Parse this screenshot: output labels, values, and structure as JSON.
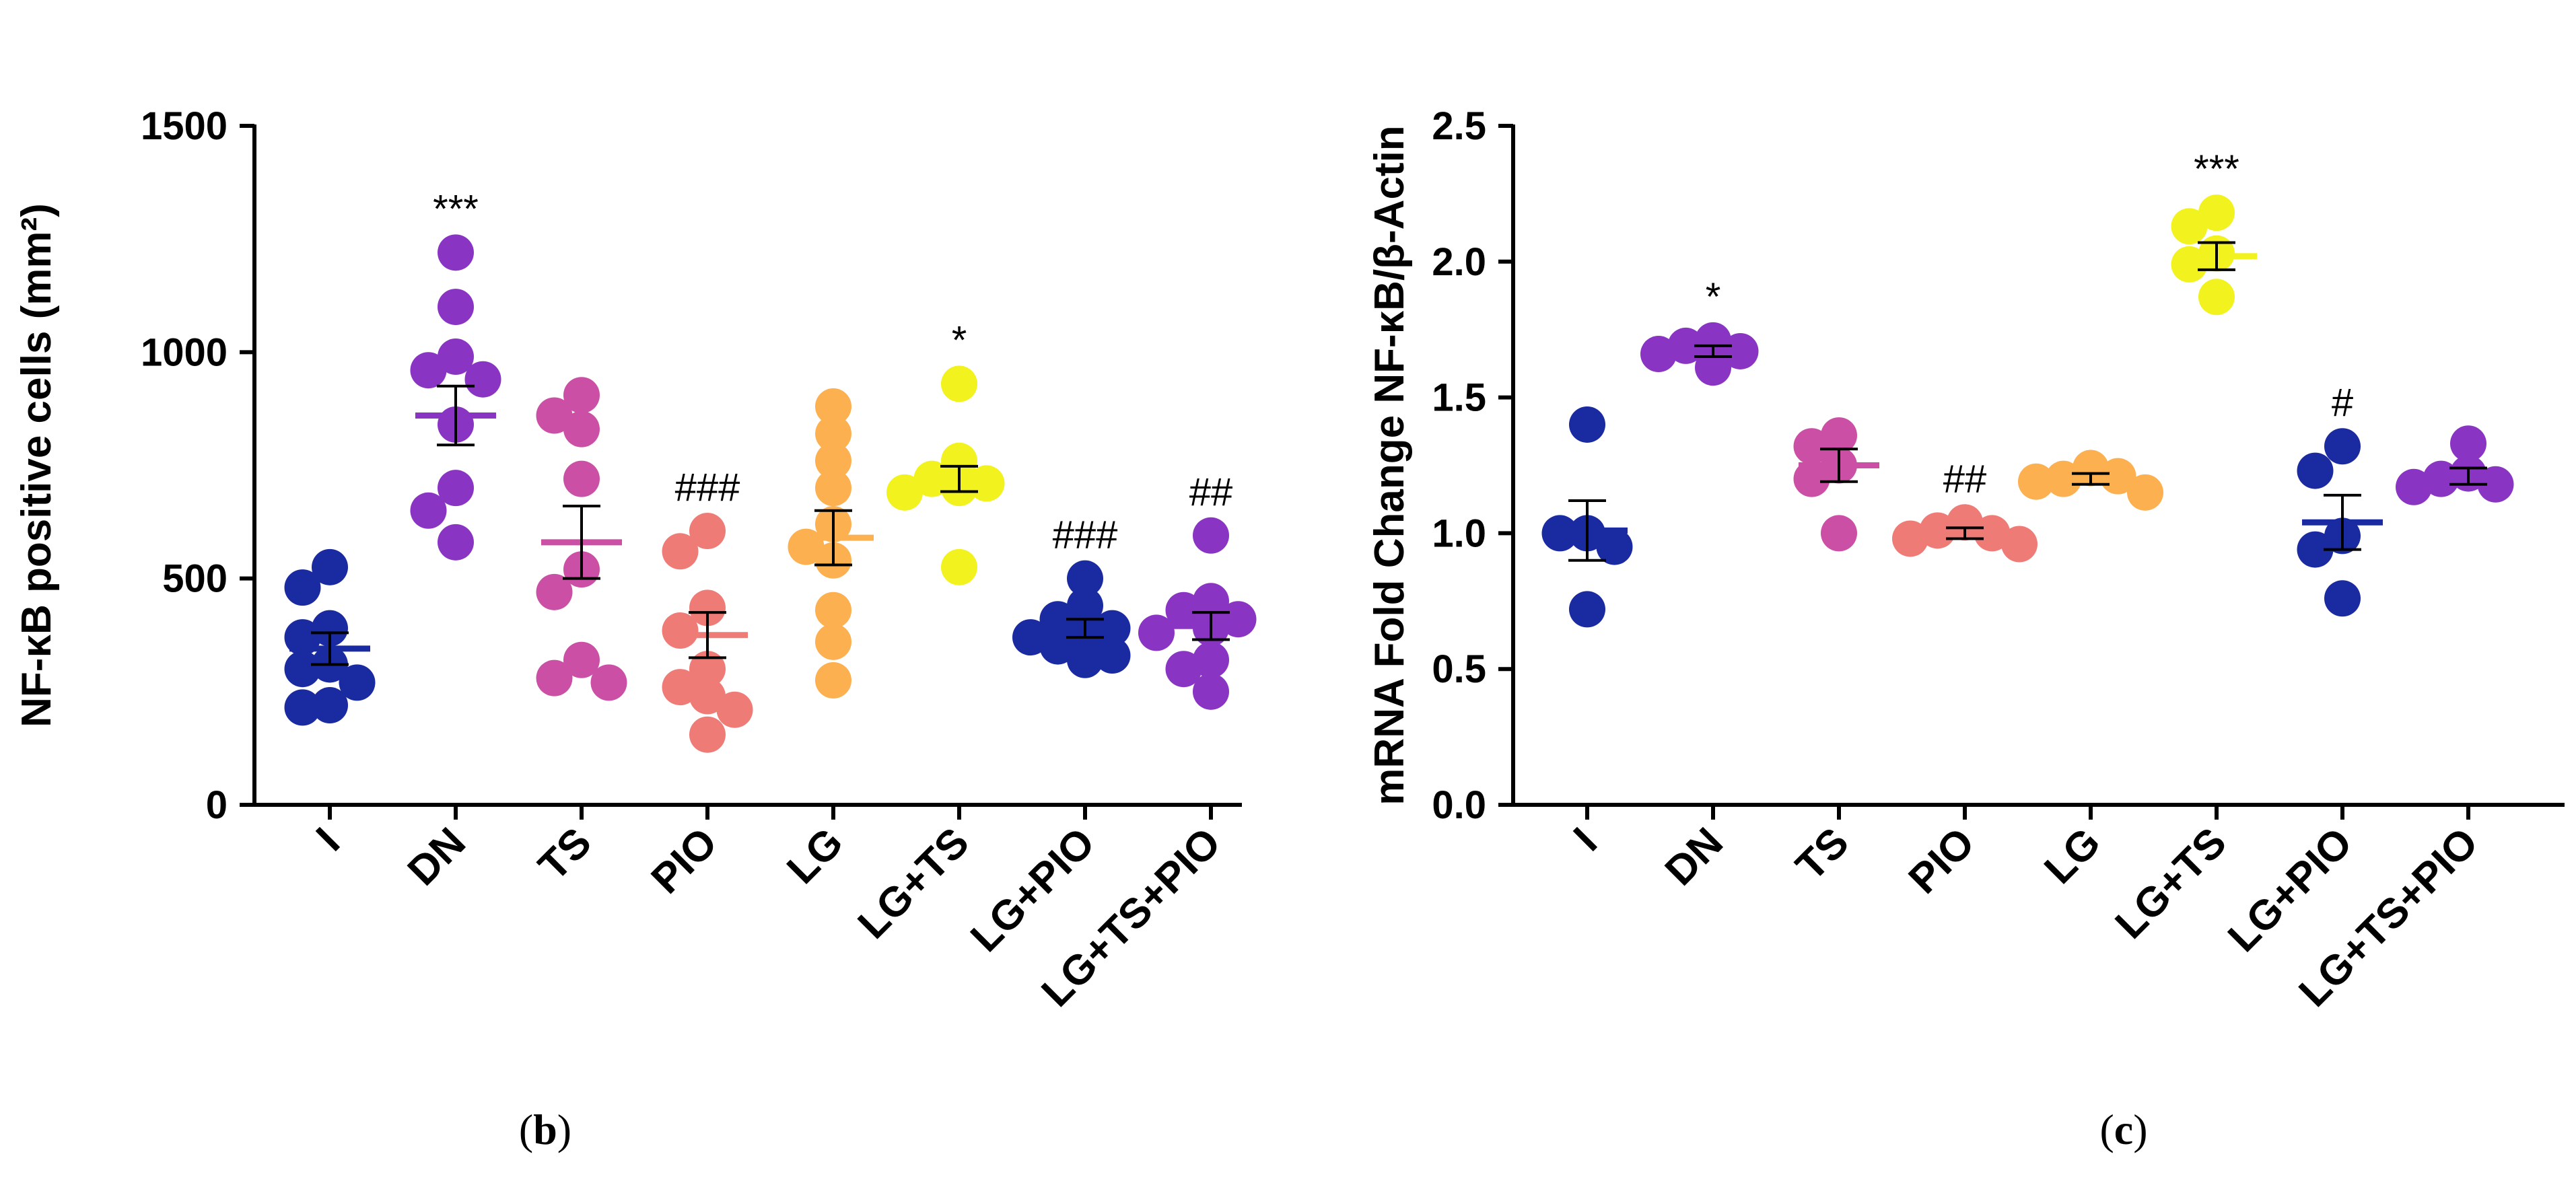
{
  "chart_data": [
    {
      "type": "scatter",
      "title": "",
      "panel_label": "b",
      "xlabel": "",
      "ylabel": "NF-κB positive cells (mm²)",
      "ylim": [
        0,
        1500
      ],
      "yticks": [
        "0",
        "500",
        "1000",
        "1500"
      ],
      "categories": [
        "I",
        "DN",
        "TS",
        "PIO",
        "LG",
        "LG+TS",
        "LG+PIO",
        "LG+TS+PIO"
      ],
      "colors": [
        "#1a2aa0",
        "#8a34c4",
        "#cc4fa6",
        "#ef7b77",
        "#fcb050",
        "#f2f21e",
        "#1a2aa0",
        "#8a34c4"
      ],
      "groups": [
        {
          "name": "I",
          "points": [
            525,
            480,
            390,
            370,
            310,
            300,
            270,
            220,
            215
          ],
          "mean": 345,
          "sem": 35,
          "annotation": ""
        },
        {
          "name": "DN",
          "points": [
            1220,
            1100,
            990,
            960,
            940,
            840,
            700,
            650,
            580
          ],
          "mean": 860,
          "sem": 65,
          "annotation": "***"
        },
        {
          "name": "TS",
          "points": [
            905,
            860,
            830,
            720,
            520,
            470,
            320,
            280,
            270
          ],
          "mean": 580,
          "sem": 80,
          "annotation": ""
        },
        {
          "name": "PIO",
          "points": [
            605,
            560,
            435,
            385,
            300,
            260,
            240,
            210,
            155
          ],
          "mean": 375,
          "sem": 50,
          "annotation": "###"
        },
        {
          "name": "LG",
          "points": [
            880,
            820,
            760,
            700,
            620,
            570,
            540,
            430,
            360,
            275
          ],
          "mean": 590,
          "sem": 60,
          "annotation": ""
        },
        {
          "name": "LG+TS",
          "points": [
            930,
            760,
            720,
            710,
            700,
            690,
            525
          ],
          "mean": 720,
          "sem": 28,
          "annotation": "*"
        },
        {
          "name": "LG+PIO",
          "points": [
            500,
            440,
            410,
            390,
            380,
            370,
            350,
            330,
            320
          ],
          "mean": 390,
          "sem": 20,
          "annotation": "###"
        },
        {
          "name": "LG+TS+PIO",
          "points": [
            595,
            450,
            430,
            410,
            390,
            380,
            320,
            300,
            250
          ],
          "mean": 395,
          "sem": 30,
          "annotation": "##"
        }
      ]
    },
    {
      "type": "scatter",
      "title": "",
      "panel_label": "c",
      "xlabel": "",
      "ylabel": "mRNA Fold Change NF-κB/β-Actin",
      "ylim": [
        0,
        2.5
      ],
      "yticks": [
        "0.0",
        "0.5",
        "1.0",
        "1.5",
        "2.0",
        "2.5"
      ],
      "categories": [
        "I",
        "DN",
        "TS",
        "PIO",
        "LG",
        "LG+TS",
        "LG+PIO",
        "LG+TS+PIO"
      ],
      "colors": [
        "#1a2aa0",
        "#8a34c4",
        "#cc4fa6",
        "#ef7b77",
        "#fcb050",
        "#f2f21e",
        "#1a2aa0",
        "#8a34c4"
      ],
      "groups": [
        {
          "name": "I",
          "points": [
            1.4,
            1.0,
            1.0,
            0.95,
            0.72
          ],
          "mean": 1.01,
          "sem": 0.11,
          "annotation": ""
        },
        {
          "name": "DN",
          "points": [
            1.71,
            1.69,
            1.67,
            1.66,
            1.61
          ],
          "mean": 1.67,
          "sem": 0.02,
          "annotation": "*"
        },
        {
          "name": "TS",
          "points": [
            1.36,
            1.32,
            1.25,
            1.2,
            1.0
          ],
          "mean": 1.25,
          "sem": 0.06,
          "annotation": ""
        },
        {
          "name": "PIO",
          "points": [
            1.04,
            1.01,
            1.0,
            0.98,
            0.96
          ],
          "mean": 1.0,
          "sem": 0.02,
          "annotation": "##"
        },
        {
          "name": "LG",
          "points": [
            1.24,
            1.2,
            1.21,
            1.19,
            1.15
          ],
          "mean": 1.2,
          "sem": 0.02,
          "annotation": ""
        },
        {
          "name": "LG+TS",
          "points": [
            2.18,
            2.13,
            2.03,
            1.99,
            1.87
          ],
          "mean": 2.02,
          "sem": 0.05,
          "annotation": "***"
        },
        {
          "name": "LG+PIO",
          "points": [
            1.32,
            1.23,
            0.99,
            0.94,
            0.76
          ],
          "mean": 1.04,
          "sem": 0.1,
          "annotation": "#"
        },
        {
          "name": "LG+TS+PIO",
          "points": [
            1.33,
            1.22,
            1.2,
            1.18,
            1.17
          ],
          "mean": 1.21,
          "sem": 0.03,
          "annotation": ""
        }
      ]
    }
  ]
}
